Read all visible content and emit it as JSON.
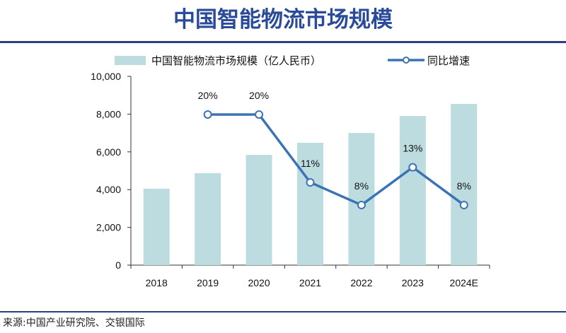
{
  "title": "中国智能物流市场规模",
  "source": "来源:中国产业研究院、交银国际",
  "chart_data": {
    "type": "bar+line",
    "categories": [
      "2018",
      "2019",
      "2020",
      "2021",
      "2022",
      "2023",
      "2024E"
    ],
    "series": [
      {
        "name": "中国智能物流市场规模（亿人民币）",
        "type": "bar",
        "color": "#bcdce0",
        "values": [
          4050,
          4870,
          5840,
          6480,
          7000,
          7900,
          8540
        ]
      },
      {
        "name": "同比增速",
        "type": "line",
        "color": "#3b73b5",
        "axis": "secondary-hidden",
        "values": [
          null,
          20,
          20,
          11,
          8,
          13,
          8
        ],
        "labels": [
          "",
          "20%",
          "20%",
          "11%",
          "8%",
          "13%",
          "8%"
        ]
      }
    ],
    "ylim": [
      0,
      10000
    ],
    "yticks": [
      "0",
      "2,000",
      "4,000",
      "6,000",
      "8,000",
      "10,000"
    ],
    "grid": false,
    "legend": "top"
  }
}
